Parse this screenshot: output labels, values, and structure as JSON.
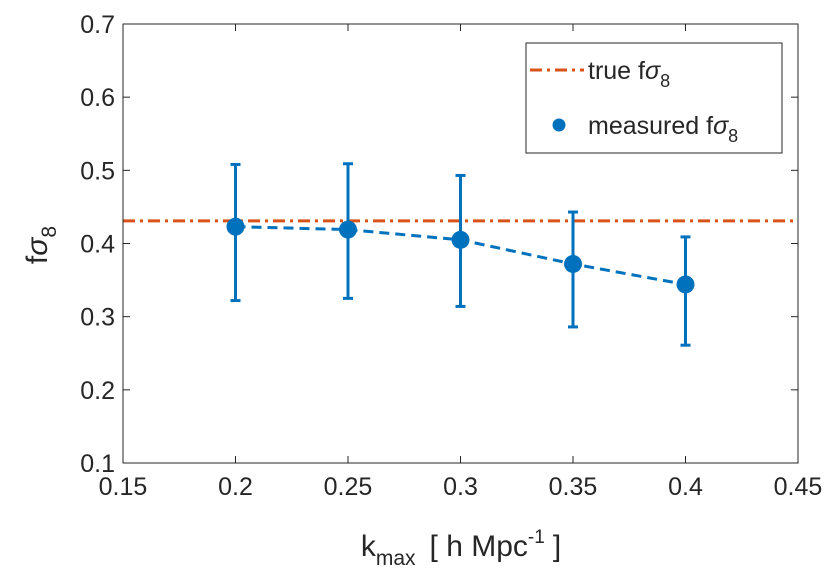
{
  "chart_data": {
    "type": "scatter",
    "title": "",
    "xlabel": {
      "main": "k",
      "sub": "max",
      "unit_prefix": "[ h Mpc",
      "unit_sup": "-1",
      "unit_suffix": "]"
    },
    "ylabel": {
      "main": "f",
      "sigma": "σ",
      "sub": "8"
    },
    "xlim": [
      0.15,
      0.45
    ],
    "ylim": [
      0.1,
      0.7
    ],
    "xticks": [
      0.15,
      0.2,
      0.25,
      0.3,
      0.35,
      0.4,
      0.45
    ],
    "xtick_labels": [
      "0.15",
      "0.2",
      "0.25",
      "0.3",
      "0.35",
      "0.4",
      "0.45"
    ],
    "yticks": [
      0.1,
      0.2,
      0.3,
      0.4,
      0.5,
      0.6,
      0.7
    ],
    "ytick_labels": [
      "0.1",
      "0.2",
      "0.3",
      "0.4",
      "0.5",
      "0.6",
      "0.7"
    ],
    "grid": false,
    "legend_position": "top-right",
    "series": [
      {
        "name": "true fσ8",
        "kind": "hline",
        "style": "dash-dot",
        "color": "#D95319",
        "value": 0.431,
        "legend": {
          "prefix": "true f",
          "sigma": "σ",
          "sub": "8"
        }
      },
      {
        "name": "measured fσ8",
        "kind": "points-with-errorbars",
        "connect": "dashed",
        "color": "#0072BD",
        "x": [
          0.2,
          0.25,
          0.3,
          0.35,
          0.4
        ],
        "y": [
          0.423,
          0.419,
          0.405,
          0.372,
          0.344
        ],
        "err_low": [
          0.322,
          0.325,
          0.314,
          0.286,
          0.261
        ],
        "err_high": [
          0.508,
          0.509,
          0.493,
          0.443,
          0.409
        ],
        "legend": {
          "prefix": "measured f",
          "sigma": "σ",
          "sub": "8"
        }
      }
    ]
  }
}
